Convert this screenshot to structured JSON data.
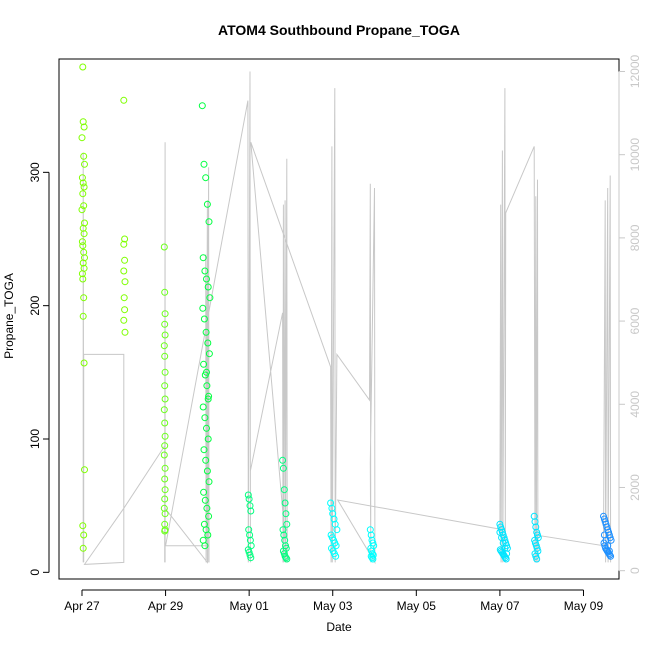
{
  "chart_data": {
    "type": "scatter",
    "title": "ATOM4 Southbound Propane_TOGA",
    "xlabel": "Date",
    "ylabel": "Propane_TOGA",
    "x_ticks": [
      "Apr 27",
      "Apr 29",
      "May 01",
      "May 03",
      "May 05",
      "May 07",
      "May 09"
    ],
    "x_tick_values": [
      0,
      2,
      4,
      6,
      8,
      10,
      12
    ],
    "xlim": [
      -0.55,
      12.85
    ],
    "ylim": [
      -5,
      385
    ],
    "y_ticks": [
      0,
      100,
      200,
      300
    ],
    "y2_ticks": [
      0,
      2000,
      4000,
      6000,
      8000,
      10000,
      12000
    ],
    "y2lim": [
      -200,
      12300
    ],
    "colors": {
      "series_start": "#7fff00",
      "series_mid": "#00ff7f",
      "series_cyan": "#00ffff",
      "series_end": "#1e90ff",
      "secondary_line": "#c8c8c8",
      "right_axis": "#c8c8c8"
    },
    "series": [
      {
        "x": [
          0.02,
          0.03,
          0.05,
          0.0,
          0.04,
          0.06,
          0.01,
          0.03,
          0.05,
          0.02,
          0.04,
          0.0,
          0.06,
          0.03,
          0.05,
          0.01,
          0.02,
          0.04,
          0.06,
          0.03,
          0.05,
          0.01,
          0.02,
          0.04,
          0.03,
          0.05,
          0.06,
          0.02,
          0.04,
          0.03,
          1.0,
          1.02,
          1.0,
          1.02,
          1.0,
          1.03,
          1.01,
          1.02,
          1.0,
          1.03
        ],
        "y": [
          379,
          338,
          334,
          326,
          312,
          306,
          296,
          292,
          289,
          284,
          275,
          272,
          262,
          258,
          254,
          248,
          245,
          240,
          236,
          232,
          228,
          224,
          220,
          206,
          192,
          157,
          77,
          35,
          28,
          18,
          354,
          250,
          246,
          234,
          226,
          218,
          206,
          197,
          189,
          180
        ]
      },
      {
        "x": [
          1.97,
          1.98,
          1.99,
          1.98,
          1.99,
          1.97,
          1.98,
          1.99,
          1.98,
          1.99,
          1.97,
          1.98,
          1.99,
          1.98,
          1.97,
          1.99,
          1.98,
          1.99,
          1.98,
          1.97,
          1.99,
          1.98,
          1.99,
          1.98
        ],
        "y": [
          244,
          210,
          194,
          186,
          178,
          170,
          162,
          150,
          140,
          130,
          122,
          112,
          102,
          95,
          88,
          78,
          70,
          62,
          55,
          48,
          44,
          36,
          32,
          31
        ]
      },
      {
        "x": [
          2.88,
          2.92,
          2.96,
          3.0,
          3.04,
          2.9,
          2.94,
          2.98,
          3.02,
          3.06,
          2.89,
          2.93,
          2.97,
          3.01,
          3.05,
          2.91,
          2.95,
          2.99,
          3.03,
          2.9,
          2.94,
          2.98,
          3.02,
          2.92,
          2.96,
          3.0,
          3.04,
          2.91,
          2.95,
          2.99,
          3.03,
          2.93,
          2.97,
          3.01,
          2.9,
          2.94,
          2.98,
          3.02
        ],
        "y": [
          350,
          306,
          296,
          276,
          263,
          236,
          226,
          220,
          214,
          206,
          198,
          190,
          180,
          172,
          164,
          156,
          148,
          140,
          132,
          124,
          116,
          108,
          100,
          92,
          84,
          76,
          68,
          60,
          54,
          48,
          42,
          36,
          32,
          28,
          24,
          20,
          150,
          130
        ]
      },
      {
        "x": [
          3.98,
          4.0,
          4.02,
          4.04,
          3.99,
          4.01,
          4.03,
          4.05,
          3.98,
          4.0,
          4.02,
          4.04,
          4.8,
          4.82,
          4.84,
          4.86,
          4.88,
          4.9,
          4.81,
          4.83,
          4.85,
          4.87,
          4.89,
          4.82,
          4.84,
          4.86,
          4.88,
          4.9
        ],
        "y": [
          58,
          55,
          50,
          46,
          32,
          28,
          24,
          20,
          17,
          15,
          13,
          11,
          84,
          78,
          62,
          52,
          44,
          36,
          32,
          28,
          24,
          20,
          18,
          16,
          14,
          12,
          11,
          10
        ]
      },
      {
        "x": [
          5.95,
          5.98,
          6.0,
          6.03,
          6.06,
          6.1,
          5.96,
          5.99,
          6.02,
          6.05,
          6.08,
          5.97,
          6.01,
          6.04,
          6.07,
          6.9,
          6.92,
          6.94,
          6.96,
          6.98,
          6.91,
          6.93,
          6.95,
          6.97,
          6.92,
          6.94,
          6.96
        ],
        "y": [
          52,
          48,
          44,
          40,
          36,
          32,
          28,
          26,
          24,
          22,
          20,
          18,
          16,
          14,
          12,
          32,
          28,
          24,
          22,
          20,
          18,
          16,
          14,
          13,
          12,
          11,
          10
        ]
      },
      {
        "x": [
          10.0,
          10.02,
          10.04,
          10.06,
          10.08,
          10.1,
          10.12,
          10.14,
          10.16,
          10.18,
          10.01,
          10.03,
          10.05,
          10.07,
          10.09,
          10.11,
          10.13,
          10.15,
          10.0,
          10.04,
          10.08,
          10.12,
          10.16,
          10.82,
          10.84,
          10.86,
          10.88,
          10.9,
          10.92,
          10.83,
          10.85,
          10.87,
          10.89,
          10.91,
          10.84,
          10.86,
          10.88
        ],
        "y": [
          36,
          34,
          32,
          30,
          28,
          26,
          24,
          22,
          20,
          18,
          17,
          16,
          15,
          14,
          13,
          12,
          11,
          10,
          30,
          26,
          22,
          18,
          14,
          42,
          38,
          34,
          30,
          28,
          26,
          24,
          22,
          20,
          18,
          16,
          14,
          12,
          10
        ]
      },
      {
        "x": [
          12.48,
          12.5,
          12.52,
          12.54,
          12.56,
          12.58,
          12.6,
          12.62,
          12.64,
          12.66,
          12.49,
          12.51,
          12.53,
          12.55,
          12.57,
          12.59,
          12.61,
          12.63,
          12.65,
          12.5,
          12.54,
          12.58,
          12.62
        ],
        "y": [
          42,
          40,
          38,
          36,
          34,
          32,
          30,
          28,
          26,
          24,
          22,
          20,
          18,
          17,
          16,
          15,
          14,
          13,
          12,
          28,
          24,
          20,
          16
        ]
      }
    ],
    "secondary_series": {
      "path": [
        [
          0.03,
          200
        ],
        [
          0.03,
          10050
        ],
        [
          0.04,
          200
        ],
        [
          0.04,
          5200
        ],
        [
          1.0,
          5200
        ],
        [
          1.0,
          200
        ],
        [
          0.06,
          150
        ],
        [
          1.0,
          1500
        ],
        [
          1.98,
          3000
        ],
        [
          1.98,
          200
        ],
        [
          1.99,
          10300
        ],
        [
          1.99,
          200
        ],
        [
          1.99,
          1500
        ],
        [
          3.0,
          200
        ],
        [
          2.96,
          7600
        ],
        [
          2.97,
          200
        ],
        [
          3.0,
          8900
        ],
        [
          3.01,
          200
        ],
        [
          3.03,
          9700
        ],
        [
          3.04,
          200
        ],
        [
          3.04,
          600
        ],
        [
          2.0,
          600
        ],
        [
          3.97,
          11300
        ],
        [
          3.98,
          200
        ],
        [
          4.02,
          12000
        ],
        [
          4.03,
          200
        ],
        [
          4.03,
          2400
        ],
        [
          4.8,
          6200
        ],
        [
          4.81,
          200
        ],
        [
          4.82,
          8800
        ],
        [
          4.83,
          200
        ],
        [
          4.86,
          8900
        ],
        [
          4.87,
          200
        ],
        [
          4.9,
          9900
        ],
        [
          4.91,
          200
        ],
        [
          4.04,
          10300
        ],
        [
          5.95,
          4900
        ],
        [
          5.96,
          200
        ],
        [
          5.98,
          10200
        ],
        [
          5.99,
          200
        ],
        [
          6.05,
          11600
        ],
        [
          6.06,
          200
        ],
        [
          6.1,
          5200
        ],
        [
          6.88,
          4100
        ],
        [
          6.9,
          9300
        ],
        [
          6.91,
          200
        ],
        [
          6.9,
          2600
        ],
        [
          7.0,
          9200
        ],
        [
          7.01,
          200
        ],
        [
          6.12,
          1700
        ],
        [
          10.0,
          1000
        ],
        [
          10.02,
          8800
        ],
        [
          10.03,
          200
        ],
        [
          10.06,
          10100
        ],
        [
          10.07,
          200
        ],
        [
          10.12,
          11600
        ],
        [
          10.13,
          200
        ],
        [
          10.14,
          8600
        ],
        [
          10.82,
          10200
        ],
        [
          10.84,
          200
        ],
        [
          10.86,
          9000
        ],
        [
          10.87,
          200
        ],
        [
          10.9,
          9400
        ],
        [
          10.91,
          200
        ],
        [
          10.9,
          850
        ],
        [
          12.48,
          600
        ],
        [
          12.52,
          8900
        ],
        [
          12.53,
          200
        ],
        [
          12.58,
          9200
        ],
        [
          12.59,
          200
        ],
        [
          12.64,
          9500
        ],
        [
          12.65,
          200
        ]
      ]
    }
  }
}
